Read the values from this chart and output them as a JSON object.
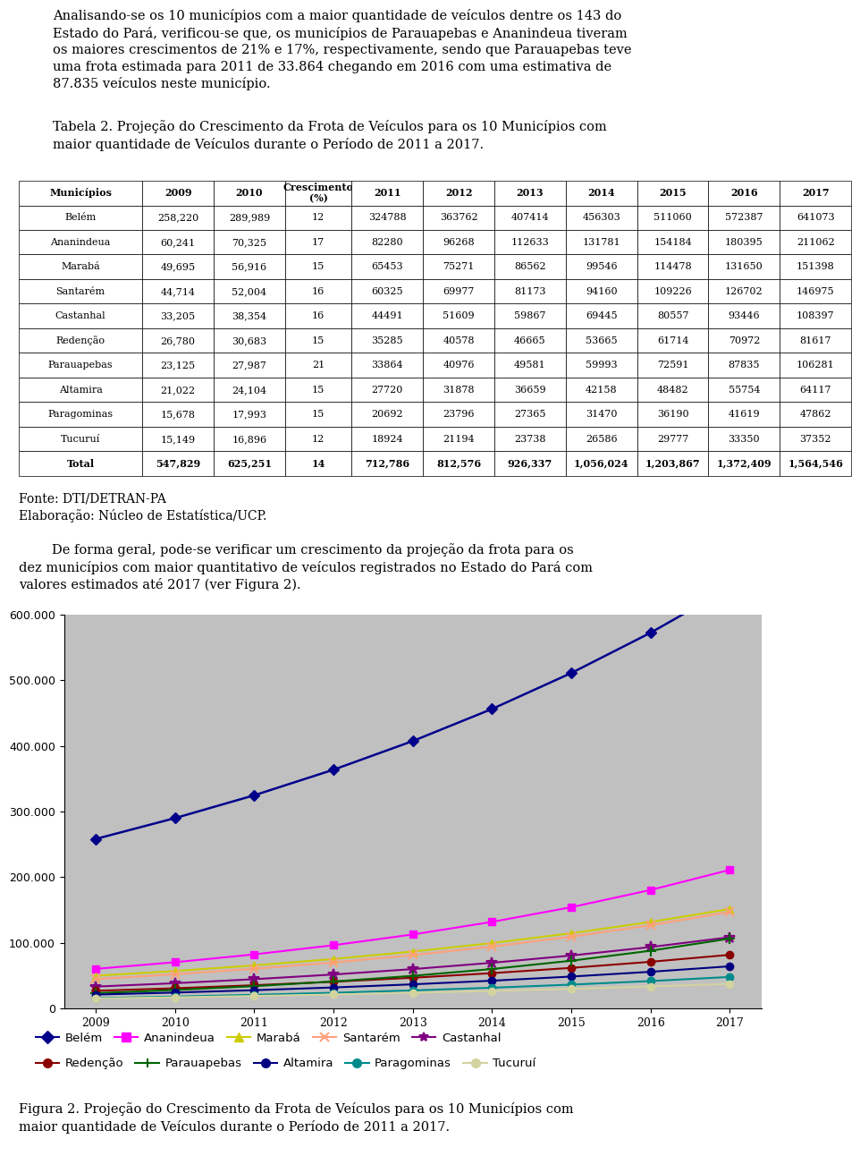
{
  "paragraph1_lines": [
    "Analisando-se os 10 municípios com a maior quantidade de veículos dentre os 143 do",
    "Estado do Pará, verificou-se que, os municípios de Parauapebas e Ananindeua tiveram",
    "os maiores crescimentos de 21% e 17%, respectivamente, sendo que Parauapebas teve",
    "uma frota estimada para 2011 de 33.864 chegando em 2016 com uma estimativa de",
    "87.835 veículos neste município."
  ],
  "table_title_lines": [
    "Tabela 2. Projeção do Crescimento da Frota de Veículos para os 10 Municípios com",
    "maior quantidade de Veículos durante o Período de 2011 a 2017."
  ],
  "municipalities": [
    "Belém",
    "Ananindeua",
    "Marabá",
    "Santarém",
    "Castanhal",
    "Redenção",
    "Parauapebas",
    "Altamira",
    "Paragominas",
    "Tucuruí",
    "Total"
  ],
  "frota_2009": [
    "258,220",
    "60,241",
    "49,695",
    "44,714",
    "33,205",
    "26,780",
    "23,125",
    "21,022",
    "15,678",
    "15,149",
    "547,829"
  ],
  "frota_2010": [
    "289,989",
    "70,325",
    "56,916",
    "52,004",
    "38,354",
    "30,683",
    "27,987",
    "24,104",
    "17,993",
    "16,896",
    "625,251"
  ],
  "crescimento": [
    "12",
    "17",
    "15",
    "16",
    "16",
    "15",
    "21",
    "15",
    "15",
    "12",
    "14"
  ],
  "proj_2011": [
    "324788",
    "82280",
    "65453",
    "60325",
    "44491",
    "35285",
    "33864",
    "27720",
    "20692",
    "18924",
    "712,786"
  ],
  "proj_2012": [
    "363762",
    "96268",
    "75271",
    "69977",
    "51609",
    "40578",
    "40976",
    "31878",
    "23796",
    "21194",
    "812,576"
  ],
  "proj_2013": [
    "407414",
    "112633",
    "86562",
    "81173",
    "59867",
    "46665",
    "49581",
    "36659",
    "27365",
    "23738",
    "926,337"
  ],
  "proj_2014": [
    "456303",
    "131781",
    "99546",
    "94160",
    "69445",
    "53665",
    "59993",
    "42158",
    "31470",
    "26586",
    "1,056,024"
  ],
  "proj_2015": [
    "511060",
    "154184",
    "114478",
    "109226",
    "80557",
    "61714",
    "72591",
    "48482",
    "36190",
    "29777",
    "1,203,867"
  ],
  "proj_2016": [
    "572387",
    "180395",
    "131650",
    "126702",
    "93446",
    "70972",
    "87835",
    "55754",
    "41619",
    "33350",
    "1,372,409"
  ],
  "proj_2017": [
    "641073",
    "211062",
    "151398",
    "146975",
    "108397",
    "81617",
    "106281",
    "64117",
    "47862",
    "37352",
    "1,564,546"
  ],
  "fonte": "Fonte: DTI/DETRAN-PA",
  "elaboracao": "Elaboração: Núcleo de Estatística/UCP.",
  "paragraph2_lines": [
    "        De forma geral, pode-se verificar um crescimento da projeção da frota para os",
    "dez municípios com maior quantitativo de veículos registrados no Estado do Pará com",
    "valores estimados até 2017 (ver Figura 2)."
  ],
  "fig_caption_lines": [
    "Figura 2. Projeção do Crescimento da Frota de Veículos para os 10 Municípios com",
    "maior quantidade de Veículos durante o Período de 2011 a 2017."
  ],
  "line_colors": [
    "#00008B",
    "#FF00FF",
    "#CCCC00",
    "#FFA07A",
    "#800080",
    "#8B0000",
    "#006400",
    "#000080",
    "#008B8B",
    "#D3D3A0"
  ],
  "line_markers": [
    "D",
    "s",
    "^",
    "x",
    "*",
    "o",
    "+",
    "o",
    "o",
    "o"
  ],
  "years_all": [
    2009,
    2010,
    2011,
    2012,
    2013,
    2014,
    2015,
    2016,
    2017
  ],
  "city_names": [
    "Belém",
    "Ananindeua",
    "Marabá",
    "Santarém",
    "Castanhal",
    "Redenção",
    "Parauapebas",
    "Altamira",
    "Paragominas",
    "Tucuruí"
  ],
  "plot_bg": "#C0C0C0",
  "ylim": [
    0,
    600000
  ],
  "yticks": [
    0,
    100000,
    200000,
    300000,
    400000,
    500000,
    600000
  ]
}
